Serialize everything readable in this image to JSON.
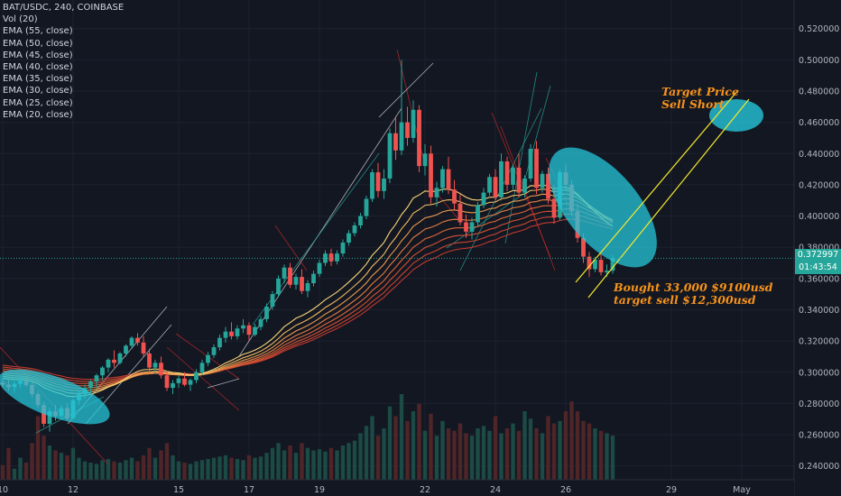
{
  "legend": {
    "symbol_line": "BAT/USDC, 240, COINBASE",
    "vol_line": "Vol (20)",
    "ema_lines": [
      "EMA (55, close)",
      "EMA (50, close)",
      "EMA (45, close)",
      "EMA (40, close)",
      "EMA (35, close)",
      "EMA (30, close)",
      "EMA (25, close)",
      "EMA (20, close)"
    ]
  },
  "annotations": {
    "target": [
      "Target Price",
      "Sell Short"
    ],
    "bought": [
      "Bought 33,000 $9100usd",
      "target sell $12,300usd"
    ]
  },
  "price_tags": {
    "last_price": "0.372997",
    "countdown": "01:43:54"
  },
  "colors": {
    "background": "#131722",
    "up": "#26a69a",
    "down": "#ef5350",
    "ema_fast": "#ffe082",
    "ema_slow": "#d84a3a",
    "annotation": "#f7931a",
    "channel": "#f5ea2a",
    "ellipse": "#26c6da"
  },
  "chart_data": {
    "type": "candlestick",
    "title": "BAT/USDC, 240, COINBASE",
    "y_axis_ticks": [
      "0.520000",
      "0.500000",
      "0.480000",
      "0.460000",
      "0.440000",
      "0.420000",
      "0.400000",
      "0.380000",
      "0.360000",
      "0.340000",
      "0.320000",
      "0.300000",
      "0.280000",
      "0.260000",
      "0.240000"
    ],
    "y_tick_values": [
      0.52,
      0.5,
      0.48,
      0.46,
      0.44,
      0.42,
      0.4,
      0.38,
      0.36,
      0.34,
      0.32,
      0.3,
      0.28,
      0.26,
      0.24
    ],
    "ylim": [
      0.2375,
      0.5285
    ],
    "x_axis_ticks": [
      {
        "label": "10",
        "bar": 0
      },
      {
        "label": "12",
        "bar": 12
      },
      {
        "label": "15",
        "bar": 30
      },
      {
        "label": "17",
        "bar": 42
      },
      {
        "label": "19",
        "bar": 54
      },
      {
        "label": "22",
        "bar": 72
      },
      {
        "label": "24",
        "bar": 84
      },
      {
        "label": "26",
        "bar": 96
      },
      {
        "label": "29",
        "bar": 114
      },
      {
        "label": "May",
        "bar": 126
      }
    ],
    "x_range_bars": [
      0,
      139
    ],
    "ohlc": [
      [
        0.2935,
        0.296,
        0.29,
        0.292
      ],
      [
        0.292,
        0.295,
        0.288,
        0.2905
      ],
      [
        0.2905,
        0.294,
        0.287,
        0.2925
      ],
      [
        0.2925,
        0.2965,
        0.29,
        0.2945
      ],
      [
        0.2945,
        0.297,
        0.2905,
        0.2918
      ],
      [
        0.2918,
        0.294,
        0.284,
        0.286
      ],
      [
        0.286,
        0.288,
        0.277,
        0.279
      ],
      [
        0.279,
        0.281,
        0.265,
        0.267
      ],
      [
        0.267,
        0.277,
        0.262,
        0.275
      ],
      [
        0.275,
        0.279,
        0.269,
        0.272
      ],
      [
        0.272,
        0.279,
        0.27,
        0.277
      ],
      [
        0.277,
        0.28,
        0.269,
        0.2705
      ],
      [
        0.2705,
        0.283,
        0.27,
        0.282
      ],
      [
        0.282,
        0.288,
        0.279,
        0.286
      ],
      [
        0.286,
        0.292,
        0.283,
        0.29
      ],
      [
        0.29,
        0.295,
        0.287,
        0.294
      ],
      [
        0.294,
        0.299,
        0.29,
        0.298
      ],
      [
        0.298,
        0.304,
        0.295,
        0.303
      ],
      [
        0.303,
        0.309,
        0.3,
        0.308
      ],
      [
        0.308,
        0.314,
        0.303,
        0.306
      ],
      [
        0.306,
        0.313,
        0.305,
        0.312
      ],
      [
        0.312,
        0.318,
        0.31,
        0.317
      ],
      [
        0.317,
        0.323,
        0.315,
        0.322
      ],
      [
        0.322,
        0.325,
        0.317,
        0.319
      ],
      [
        0.319,
        0.323,
        0.31,
        0.312
      ],
      [
        0.312,
        0.315,
        0.3,
        0.303
      ],
      [
        0.303,
        0.308,
        0.299,
        0.306
      ],
      [
        0.306,
        0.31,
        0.296,
        0.298
      ],
      [
        0.298,
        0.301,
        0.288,
        0.29
      ],
      [
        0.29,
        0.295,
        0.286,
        0.293
      ],
      [
        0.293,
        0.298,
        0.29,
        0.296
      ],
      [
        0.296,
        0.3,
        0.291,
        0.292
      ],
      [
        0.292,
        0.296,
        0.288,
        0.295
      ],
      [
        0.295,
        0.302,
        0.293,
        0.3
      ],
      [
        0.3,
        0.308,
        0.298,
        0.306
      ],
      [
        0.306,
        0.313,
        0.304,
        0.311
      ],
      [
        0.311,
        0.318,
        0.309,
        0.316
      ],
      [
        0.316,
        0.324,
        0.314,
        0.322
      ],
      [
        0.322,
        0.329,
        0.319,
        0.326
      ],
      [
        0.326,
        0.332,
        0.321,
        0.323
      ],
      [
        0.323,
        0.33,
        0.321,
        0.328
      ],
      [
        0.328,
        0.334,
        0.325,
        0.33
      ],
      [
        0.33,
        0.332,
        0.32,
        0.324
      ],
      [
        0.324,
        0.331,
        0.323,
        0.329
      ],
      [
        0.329,
        0.336,
        0.327,
        0.334
      ],
      [
        0.334,
        0.344,
        0.332,
        0.342
      ],
      [
        0.342,
        0.352,
        0.34,
        0.35
      ],
      [
        0.35,
        0.362,
        0.348,
        0.36
      ],
      [
        0.36,
        0.369,
        0.357,
        0.367
      ],
      [
        0.367,
        0.37,
        0.354,
        0.356
      ],
      [
        0.356,
        0.363,
        0.353,
        0.361
      ],
      [
        0.361,
        0.366,
        0.35,
        0.352
      ],
      [
        0.352,
        0.359,
        0.348,
        0.357
      ],
      [
        0.357,
        0.365,
        0.355,
        0.363
      ],
      [
        0.363,
        0.372,
        0.361,
        0.37
      ],
      [
        0.37,
        0.378,
        0.368,
        0.376
      ],
      [
        0.376,
        0.379,
        0.368,
        0.371
      ],
      [
        0.371,
        0.378,
        0.369,
        0.376
      ],
      [
        0.376,
        0.385,
        0.374,
        0.383
      ],
      [
        0.383,
        0.391,
        0.381,
        0.389
      ],
      [
        0.389,
        0.396,
        0.387,
        0.394
      ],
      [
        0.394,
        0.402,
        0.392,
        0.4
      ],
      [
        0.4,
        0.413,
        0.398,
        0.411
      ],
      [
        0.411,
        0.43,
        0.409,
        0.428
      ],
      [
        0.428,
        0.434,
        0.412,
        0.416
      ],
      [
        0.416,
        0.43,
        0.411,
        0.424
      ],
      [
        0.424,
        0.456,
        0.421,
        0.453
      ],
      [
        0.453,
        0.464,
        0.436,
        0.442
      ],
      [
        0.442,
        0.5,
        0.439,
        0.46
      ],
      [
        0.46,
        0.47,
        0.445,
        0.45
      ],
      [
        0.45,
        0.474,
        0.447,
        0.468
      ],
      [
        0.468,
        0.471,
        0.428,
        0.432
      ],
      [
        0.432,
        0.446,
        0.426,
        0.44
      ],
      [
        0.44,
        0.445,
        0.408,
        0.412
      ],
      [
        0.412,
        0.422,
        0.406,
        0.418
      ],
      [
        0.418,
        0.432,
        0.415,
        0.43
      ],
      [
        0.43,
        0.438,
        0.414,
        0.417
      ],
      [
        0.417,
        0.423,
        0.404,
        0.408
      ],
      [
        0.408,
        0.414,
        0.394,
        0.396
      ],
      [
        0.396,
        0.401,
        0.386,
        0.39
      ],
      [
        0.39,
        0.399,
        0.385,
        0.396
      ],
      [
        0.396,
        0.409,
        0.394,
        0.407
      ],
      [
        0.407,
        0.418,
        0.405,
        0.415
      ],
      [
        0.415,
        0.427,
        0.413,
        0.425
      ],
      [
        0.425,
        0.43,
        0.41,
        0.412
      ],
      [
        0.412,
        0.44,
        0.41,
        0.435
      ],
      [
        0.435,
        0.438,
        0.416,
        0.42
      ],
      [
        0.42,
        0.433,
        0.417,
        0.431
      ],
      [
        0.431,
        0.44,
        0.412,
        0.415
      ],
      [
        0.415,
        0.426,
        0.412,
        0.424
      ],
      [
        0.424,
        0.446,
        0.422,
        0.443
      ],
      [
        0.443,
        0.448,
        0.414,
        0.418
      ],
      [
        0.418,
        0.429,
        0.415,
        0.427
      ],
      [
        0.427,
        0.431,
        0.408,
        0.411
      ],
      [
        0.411,
        0.42,
        0.395,
        0.399
      ],
      [
        0.399,
        0.43,
        0.397,
        0.428
      ],
      [
        0.428,
        0.433,
        0.417,
        0.42
      ],
      [
        0.42,
        0.423,
        0.4,
        0.403
      ],
      [
        0.403,
        0.408,
        0.383,
        0.386
      ],
      [
        0.386,
        0.389,
        0.37,
        0.374
      ],
      [
        0.374,
        0.377,
        0.361,
        0.366
      ],
      [
        0.366,
        0.374,
        0.364,
        0.372
      ],
      [
        0.372,
        0.376,
        0.362,
        0.364
      ],
      [
        0.364,
        0.369,
        0.361,
        0.365
      ],
      [
        0.365,
        0.375,
        0.363,
        0.373
      ]
    ],
    "volume": [
      120,
      260,
      90,
      180,
      140,
      300,
      520,
      360,
      280,
      240,
      220,
      200,
      260,
      180,
      150,
      140,
      130,
      160,
      170,
      150,
      140,
      160,
      180,
      150,
      200,
      260,
      180,
      240,
      300,
      200,
      150,
      140,
      130,
      150,
      160,
      170,
      180,
      190,
      200,
      180,
      170,
      160,
      200,
      180,
      190,
      220,
      260,
      300,
      240,
      280,
      220,
      300,
      260,
      240,
      250,
      230,
      260,
      240,
      280,
      300,
      320,
      380,
      440,
      520,
      360,
      420,
      600,
      520,
      700,
      480,
      560,
      620,
      400,
      540,
      360,
      480,
      420,
      400,
      460,
      380,
      360,
      420,
      440,
      400,
      520,
      380,
      420,
      460,
      400,
      560,
      500,
      420,
      380,
      520,
      460,
      480,
      560,
      640,
      560,
      480,
      460,
      420,
      400,
      380,
      360
    ],
    "ema_series": [
      "EMA (55, close)",
      "EMA (50, close)",
      "EMA (45, close)",
      "EMA (40, close)",
      "EMA (35, close)",
      "EMA (30, close)",
      "EMA (25, close)",
      "EMA (20, close)"
    ],
    "ema_periods": [
      55,
      50,
      45,
      40,
      35,
      30,
      25,
      20
    ],
    "last_price": 0.372997
  }
}
